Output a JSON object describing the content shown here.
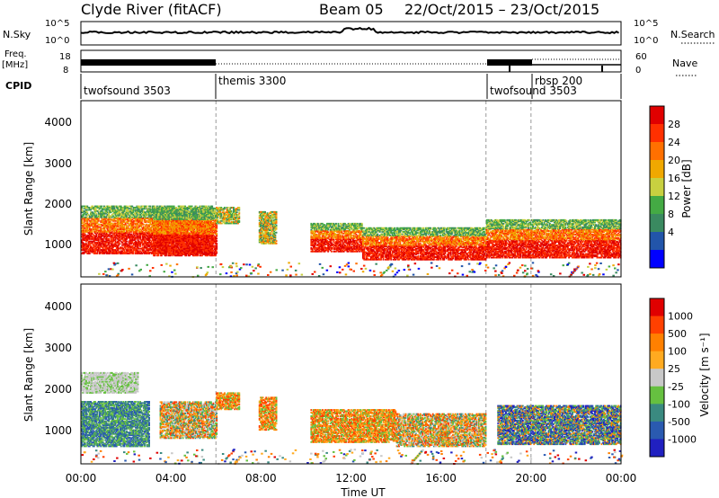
{
  "header": {
    "station": "Clyde River (fitACF)",
    "beam": "Beam 05",
    "date_range": "22/Oct/2015 – 23/Oct/2015"
  },
  "noise_panel": {
    "left_label": "N.Sky",
    "left_ticks": [
      "10^5",
      "10^0"
    ],
    "right_label": "N.Search",
    "right_ticks": [
      "10^5",
      "10^0"
    ]
  },
  "freq_panel": {
    "left_label_1": "Freq.",
    "left_label_2": "[MHz]",
    "left_ticks": [
      "18",
      "8"
    ],
    "right_label": "Nave",
    "right_ticks": [
      "60",
      "0"
    ]
  },
  "cpid": {
    "label": "CPID",
    "segments": [
      {
        "name": "twofsound 3503",
        "start_h": 0
      },
      {
        "name": "themis 3300",
        "start_h": 6
      },
      {
        "name": "twofsound 3503",
        "start_h": 18
      },
      {
        "name": "rbsp 200",
        "start_h": 20
      }
    ]
  },
  "xaxis": {
    "ticks": [
      "00:00",
      "04:00",
      "08:00",
      "12:00",
      "16:00",
      "20:00",
      "00:00"
    ],
    "label": "Time UT"
  },
  "power_panel": {
    "ylabel": "Slant Range [km]",
    "yticks": [
      "4000",
      "3000",
      "2000",
      "1000"
    ],
    "colorbar_label": "Power [dB]",
    "colorbar_ticks": [
      "28",
      "24",
      "20",
      "16",
      "12",
      "8",
      "4"
    ],
    "colors": [
      "#0000ff",
      "#2255aa",
      "#3a8a60",
      "#44aa44",
      "#c8d040",
      "#f0a800",
      "#ff7000",
      "#ff3000",
      "#e00000"
    ]
  },
  "velocity_panel": {
    "ylabel": "Slant Range [km]",
    "yticks": [
      "4000",
      "3000",
      "2000",
      "1000"
    ],
    "colorbar_label": "Velocity [m s⁻¹]",
    "colorbar_ticks": [
      "1000",
      "500",
      "100",
      "25",
      "-25",
      "-100",
      "-500",
      "-1000"
    ],
    "colors": [
      "#2020c0",
      "#2a5ab0",
      "#3a8a80",
      "#66c040",
      "#c8c8c8",
      "#ffaa20",
      "#ff8000",
      "#ff4000",
      "#e00000"
    ]
  },
  "chart_data": {
    "type": "heatmap",
    "x_range_hours": [
      0,
      24
    ],
    "y_range_km": [
      180,
      4550
    ],
    "power_bands": [
      {
        "t0": 0.0,
        "t1": 5.8,
        "r0": 750,
        "r1": 1950,
        "level": "high"
      },
      {
        "t0": 3.2,
        "t1": 6.0,
        "r0": 700,
        "r1": 1900,
        "level": "high"
      },
      {
        "t0": 6.0,
        "t1": 7.0,
        "r0": 1500,
        "r1": 1900,
        "level": "mid"
      },
      {
        "t0": 7.9,
        "t1": 8.7,
        "r0": 1000,
        "r1": 1800,
        "level": "mid"
      },
      {
        "t0": 10.2,
        "t1": 12.5,
        "r0": 800,
        "r1": 1500,
        "level": "high"
      },
      {
        "t0": 12.5,
        "t1": 18.0,
        "r0": 600,
        "r1": 1400,
        "level": "high"
      },
      {
        "t0": 18.0,
        "t1": 24.0,
        "r0": 650,
        "r1": 1600,
        "level": "high"
      }
    ],
    "velocity_bands": [
      {
        "t0": 0.0,
        "t1": 3.0,
        "r0": 600,
        "r1": 1700,
        "level": "green"
      },
      {
        "t0": 0.0,
        "t1": 2.5,
        "r0": 1900,
        "r1": 2400,
        "level": "gray"
      },
      {
        "t0": 3.5,
        "t1": 6.0,
        "r0": 800,
        "r1": 1700,
        "level": "mixed"
      },
      {
        "t0": 6.0,
        "t1": 7.0,
        "r0": 1500,
        "r1": 1900,
        "level": "orange"
      },
      {
        "t0": 7.9,
        "t1": 8.7,
        "r0": 1000,
        "r1": 1800,
        "level": "orange"
      },
      {
        "t0": 10.2,
        "t1": 14.0,
        "r0": 700,
        "r1": 1500,
        "level": "orange"
      },
      {
        "t0": 14.0,
        "t1": 18.0,
        "r0": 600,
        "r1": 1400,
        "level": "mixed"
      },
      {
        "t0": 18.5,
        "t1": 24.0,
        "r0": 650,
        "r1": 1600,
        "level": "blue"
      }
    ]
  }
}
